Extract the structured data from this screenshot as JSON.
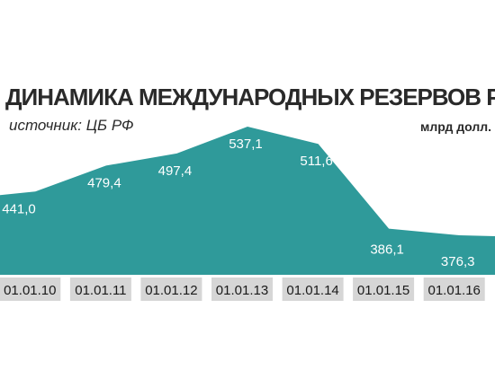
{
  "header": {
    "title": "ДИНАМИКА МЕЖДУНАРОДНЫХ РЕЗЕРВОВ РОССИИ",
    "source": "источник: ЦБ РФ",
    "unit": "млрд долл."
  },
  "colors": {
    "area_fill": "#2f9a9a",
    "tick_box": "#d6d6d6",
    "text": "#2a2a2a"
  },
  "chart_data": {
    "type": "area",
    "title": "ДИНАМИКА МЕЖДУНАРОДНЫХ РЕЗЕРВОВ РОССИИ",
    "categories": [
      "01.01.10",
      "01.01.11",
      "01.01.12",
      "01.01.13",
      "01.01.14",
      "01.01.15",
      "01.01.16"
    ],
    "values": [
      441.0,
      479.4,
      497.4,
      537.1,
      511.6,
      386.1,
      376.3
    ],
    "value_labels": [
      "441,0",
      "479,4",
      "497,4",
      "537,1",
      "511,6",
      "386,1",
      "376,3"
    ],
    "xlabel": "",
    "ylabel": "млрд долл.",
    "grid": false,
    "legend": "none"
  }
}
